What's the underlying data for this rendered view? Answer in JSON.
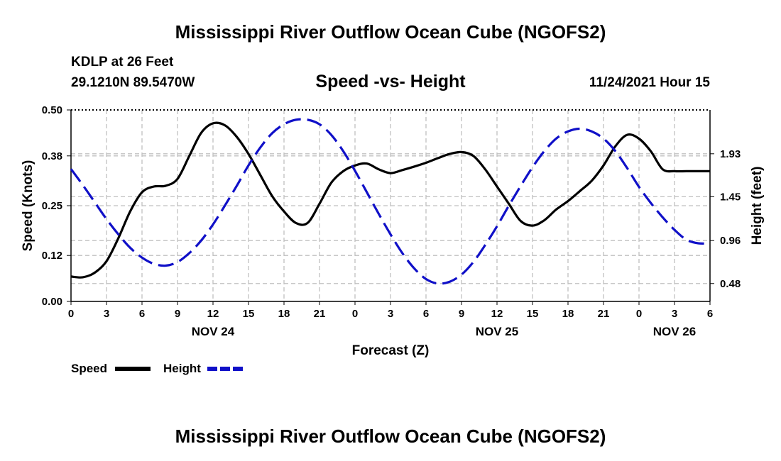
{
  "header": {
    "title": "Mississippi River Outflow Ocean Cube (NGOFS2)",
    "station": "KDLP at 26 Feet",
    "coords": "29.1210N  89.5470W",
    "subtitle": "Speed -vs- Height",
    "datetime": "11/24/2021 Hour 15"
  },
  "footer": {
    "title": "Mississippi River Outflow Ocean Cube (NGOFS2)"
  },
  "legend": {
    "speed_label": "Speed",
    "height_label": "Height",
    "speed_color": "#000000",
    "height_color": "#1010c8"
  },
  "chart_data": {
    "type": "line",
    "title": "Speed -vs- Height",
    "xlabel": "Forecast (Z)",
    "ylabel": "Speed (Knots)",
    "y2label": "Height (feet)",
    "x_hours_range": [
      0,
      54
    ],
    "x_tick_hours": [
      0,
      3,
      6,
      9,
      12,
      15,
      18,
      21,
      24,
      27,
      30,
      33,
      36,
      39,
      42,
      45,
      48,
      51,
      54
    ],
    "x_tick_labels": [
      "0",
      "3",
      "6",
      "9",
      "12",
      "15",
      "18",
      "21",
      "0",
      "3",
      "6",
      "9",
      "12",
      "15",
      "18",
      "21",
      "0",
      "3",
      "6"
    ],
    "day_labels": [
      {
        "hour": 12,
        "label": "NOV 24"
      },
      {
        "hour": 36,
        "label": "NOV 25"
      },
      {
        "hour": 51,
        "label": "NOV 26"
      }
    ],
    "ylim": [
      0,
      0.5
    ],
    "y_ticks": [
      0.0,
      0.12,
      0.25,
      0.38,
      0.5
    ],
    "y_tick_labels": [
      "0.00",
      "0.12",
      "0.25",
      "0.38",
      "0.50"
    ],
    "y2lim": [
      0.28,
      2.42
    ],
    "y2_ticks": [
      0.48,
      0.96,
      1.45,
      1.93
    ],
    "y2_tick_labels": [
      "0.48",
      "0.96",
      "1.45",
      "1.93"
    ],
    "grid": true,
    "series": [
      {
        "name": "Speed",
        "axis": "left",
        "style": "solid",
        "x": [
          0,
          1,
          2,
          3,
          4,
          5,
          6,
          7,
          8,
          9,
          10,
          11,
          12,
          13,
          14,
          15,
          16,
          17,
          18,
          19,
          20,
          21,
          22,
          23,
          24,
          25,
          26,
          27,
          28,
          29,
          30,
          31,
          32,
          33,
          34,
          35,
          36,
          37,
          38,
          39,
          40,
          41,
          42,
          43,
          44,
          45,
          46,
          47,
          48,
          49,
          50,
          51,
          52,
          53,
          54
        ],
        "values": [
          0.065,
          0.063,
          0.075,
          0.105,
          0.165,
          0.235,
          0.285,
          0.3,
          0.302,
          0.32,
          0.38,
          0.44,
          0.465,
          0.46,
          0.43,
          0.385,
          0.33,
          0.275,
          0.235,
          0.205,
          0.205,
          0.255,
          0.31,
          0.34,
          0.355,
          0.36,
          0.345,
          0.335,
          0.343,
          0.352,
          0.362,
          0.374,
          0.385,
          0.39,
          0.38,
          0.345,
          0.3,
          0.255,
          0.21,
          0.198,
          0.212,
          0.24,
          0.262,
          0.288,
          0.315,
          0.355,
          0.405,
          0.435,
          0.425,
          0.392,
          0.345,
          0.34,
          0.34,
          0.34,
          0.34
        ]
      },
      {
        "name": "Height",
        "axis": "right",
        "style": "dashed",
        "x": [
          0,
          1,
          2,
          3,
          4,
          5,
          6,
          7,
          8,
          9,
          10,
          11,
          12,
          13,
          14,
          15,
          16,
          17,
          18,
          19,
          20,
          21,
          22,
          23,
          24,
          25,
          26,
          27,
          28,
          29,
          30,
          31,
          32,
          33,
          34,
          35,
          36,
          37,
          38,
          39,
          40,
          41,
          42,
          43,
          44,
          45,
          46,
          47,
          48,
          49,
          50,
          51,
          52,
          53,
          54
        ],
        "values": [
          1.76,
          1.58,
          1.39,
          1.2,
          1.03,
          0.88,
          0.77,
          0.7,
          0.68,
          0.72,
          0.82,
          0.96,
          1.14,
          1.35,
          1.57,
          1.8,
          2.0,
          2.16,
          2.26,
          2.31,
          2.31,
          2.26,
          2.14,
          1.96,
          1.74,
          1.5,
          1.26,
          1.03,
          0.82,
          0.65,
          0.53,
          0.48,
          0.5,
          0.58,
          0.72,
          0.91,
          1.12,
          1.35,
          1.57,
          1.78,
          1.96,
          2.1,
          2.18,
          2.21,
          2.18,
          2.1,
          1.96,
          1.77,
          1.56,
          1.38,
          1.22,
          1.08,
          0.97,
          0.93,
          0.93
        ]
      }
    ]
  }
}
